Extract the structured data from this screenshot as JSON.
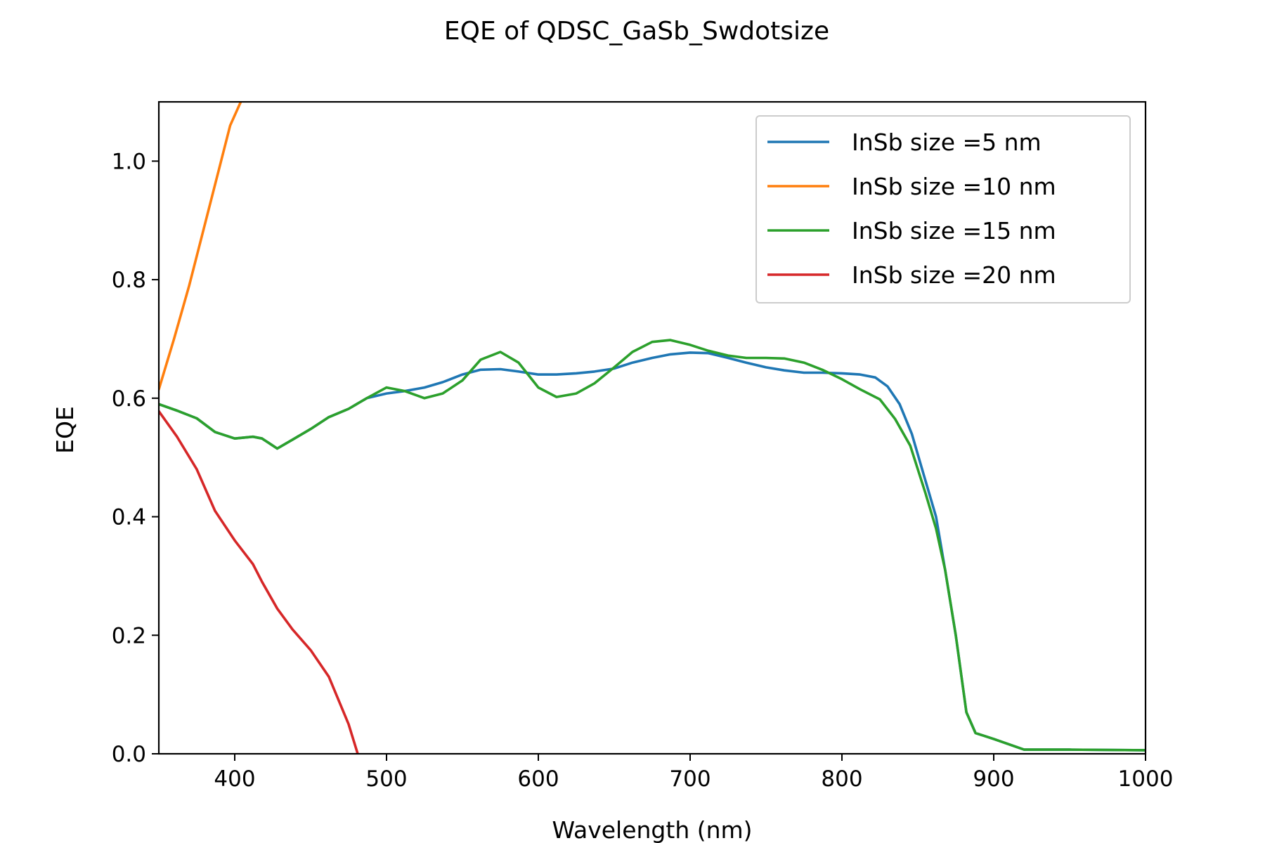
{
  "chart_data": {
    "type": "line",
    "title": "EQE of  QDSC_GaSb_Swdotsize",
    "xlabel": "Wavelength (nm)",
    "ylabel": "EQE",
    "xlim": [
      350,
      1000
    ],
    "ylim": [
      0.0,
      1.1
    ],
    "x_ticks": [
      400,
      500,
      600,
      700,
      800,
      900,
      1000
    ],
    "y_ticks": [
      0.0,
      0.2,
      0.4,
      0.6,
      0.8,
      1.0
    ],
    "x_tick_labels": [
      "400",
      "500",
      "600",
      "700",
      "800",
      "900",
      "1000"
    ],
    "y_tick_labels": [
      "0.0",
      "0.2",
      "0.4",
      "0.6",
      "0.8",
      "1.0"
    ],
    "grid": false,
    "legend_position": "top-right",
    "series": [
      {
        "name": "InSb size =5 nm",
        "color": "#1f77b4",
        "x": [
          350,
          362,
          375,
          387,
          400,
          412,
          418,
          428,
          438,
          450,
          462,
          475,
          487,
          500,
          512,
          525,
          537,
          550,
          562,
          575,
          587,
          600,
          612,
          625,
          637,
          650,
          662,
          675,
          687,
          700,
          712,
          725,
          737,
          750,
          762,
          775,
          787,
          800,
          812,
          822,
          830,
          838,
          846,
          854,
          862,
          868,
          875,
          882,
          888,
          900,
          920,
          950,
          1000
        ],
        "y": [
          0.59,
          0.579,
          0.566,
          0.543,
          0.532,
          0.535,
          0.532,
          0.515,
          0.53,
          0.548,
          0.568,
          0.582,
          0.6,
          0.608,
          0.612,
          0.618,
          0.627,
          0.64,
          0.648,
          0.649,
          0.645,
          0.64,
          0.64,
          0.642,
          0.645,
          0.65,
          0.66,
          0.668,
          0.674,
          0.677,
          0.676,
          0.668,
          0.66,
          0.652,
          0.647,
          0.643,
          0.643,
          0.642,
          0.64,
          0.635,
          0.62,
          0.59,
          0.54,
          0.47,
          0.4,
          0.31,
          0.2,
          0.07,
          0.035,
          0.025,
          0.007,
          0.007,
          0.006
        ]
      },
      {
        "name": "InSb size =10 nm",
        "color": "#ff7f0e",
        "x": [
          350,
          360,
          370,
          380,
          390,
          397,
          404
        ],
        "y": [
          0.615,
          0.7,
          0.79,
          0.89,
          0.99,
          1.06,
          1.1
        ]
      },
      {
        "name": "InSb size =15 nm",
        "color": "#2ca02c",
        "x": [
          350,
          362,
          375,
          387,
          400,
          412,
          418,
          428,
          438,
          450,
          462,
          475,
          487,
          500,
          512,
          525,
          537,
          550,
          562,
          575,
          587,
          600,
          612,
          625,
          637,
          650,
          662,
          675,
          687,
          700,
          712,
          725,
          737,
          750,
          762,
          775,
          787,
          800,
          812,
          825,
          835,
          845,
          855,
          862,
          868,
          875,
          882,
          888,
          900,
          920,
          950,
          1000
        ],
        "y": [
          0.59,
          0.579,
          0.566,
          0.543,
          0.532,
          0.535,
          0.532,
          0.515,
          0.53,
          0.548,
          0.568,
          0.582,
          0.6,
          0.618,
          0.612,
          0.6,
          0.608,
          0.63,
          0.665,
          0.678,
          0.66,
          0.618,
          0.602,
          0.608,
          0.625,
          0.652,
          0.678,
          0.695,
          0.698,
          0.69,
          0.68,
          0.672,
          0.668,
          0.668,
          0.667,
          0.66,
          0.648,
          0.632,
          0.615,
          0.598,
          0.565,
          0.52,
          0.44,
          0.38,
          0.31,
          0.2,
          0.07,
          0.035,
          0.025,
          0.007,
          0.007,
          0.006
        ]
      },
      {
        "name": "InSb size =20 nm",
        "color": "#d62728",
        "x": [
          350,
          362,
          375,
          387,
          400,
          412,
          418,
          428,
          438,
          450,
          462,
          475,
          481
        ],
        "y": [
          0.578,
          0.535,
          0.48,
          0.41,
          0.36,
          0.32,
          0.29,
          0.245,
          0.21,
          0.175,
          0.13,
          0.05,
          0.0
        ]
      }
    ]
  }
}
